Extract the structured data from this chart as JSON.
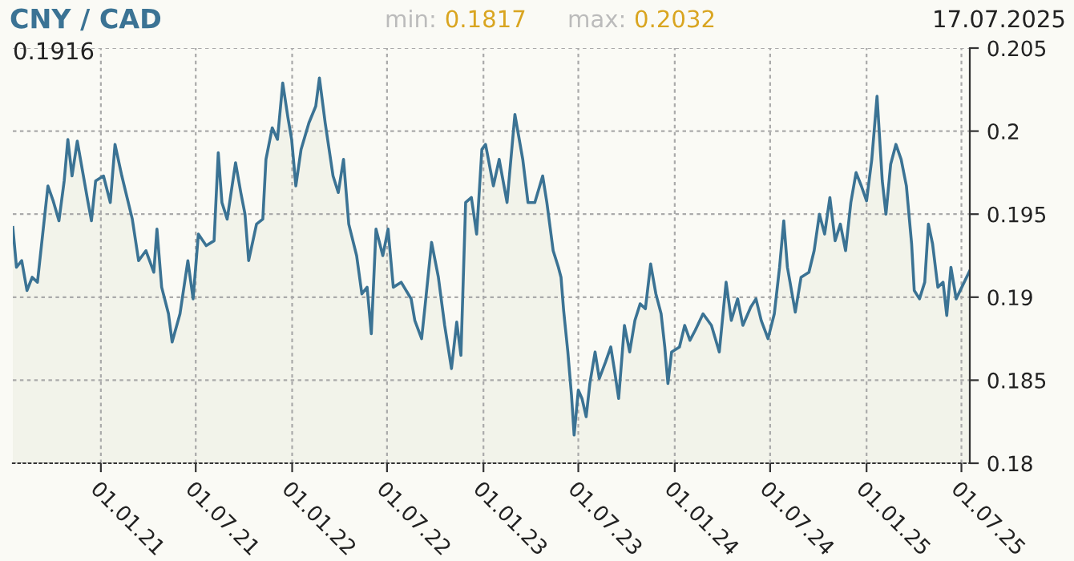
{
  "chart_data": {
    "type": "area",
    "title": "CNY / CAD",
    "annotations": [
      "0.1916",
      "min: 0.1817",
      "max: 0.2032",
      "17.07.2025"
    ],
    "x": [
      "2020-07-17",
      "2020-07-24",
      "2020-08-03",
      "2020-08-13",
      "2020-08-23",
      "2020-09-02",
      "2020-09-12",
      "2020-09-22",
      "2020-10-02",
      "2020-10-13",
      "2020-10-23",
      "2020-10-30",
      "2020-11-07",
      "2020-11-17",
      "2020-11-27",
      "2020-12-07",
      "2020-12-14",
      "2020-12-22",
      "2021-01-06",
      "2021-01-19",
      "2021-01-28",
      "2021-02-10",
      "2021-02-20",
      "2021-03-02",
      "2021-03-14",
      "2021-03-28",
      "2021-04-12",
      "2021-04-18",
      "2021-04-27",
      "2021-05-10",
      "2021-05-17",
      "2021-06-01",
      "2021-06-16",
      "2021-06-26",
      "2021-07-06",
      "2021-07-21",
      "2021-08-05",
      "2021-08-13",
      "2021-08-20",
      "2021-08-30",
      "2021-09-15",
      "2021-09-25",
      "2021-10-03",
      "2021-10-10",
      "2021-10-25",
      "2021-11-06",
      "2021-11-12",
      "2021-11-24",
      "2021-12-04",
      "2021-12-14",
      "2021-12-24",
      "2021-12-31",
      "2022-01-08",
      "2022-01-18",
      "2022-02-02",
      "2022-02-15",
      "2022-02-22",
      "2022-03-05",
      "2022-03-20",
      "2022-03-30",
      "2022-04-09",
      "2022-04-19",
      "2022-05-04",
      "2022-05-14",
      "2022-05-24",
      "2022-06-01",
      "2022-06-10",
      "2022-06-23",
      "2022-07-03",
      "2022-07-13",
      "2022-07-28",
      "2022-08-16",
      "2022-08-23",
      "2022-09-05",
      "2022-09-12",
      "2022-09-24",
      "2022-10-07",
      "2022-10-19",
      "2022-11-01",
      "2022-11-11",
      "2022-11-19",
      "2022-11-28",
      "2022-12-09",
      "2022-12-19",
      "2022-12-29",
      "2023-01-05",
      "2023-01-20",
      "2023-01-31",
      "2023-02-15",
      "2023-03-02",
      "2023-03-17",
      "2023-03-27",
      "2023-04-09",
      "2023-04-24",
      "2023-05-02",
      "2023-05-14",
      "2023-05-24",
      "2023-05-29",
      "2023-06-03",
      "2023-06-11",
      "2023-06-18",
      "2023-06-23",
      "2023-07-01",
      "2023-07-08",
      "2023-07-16",
      "2023-07-23",
      "2023-08-02",
      "2023-08-10",
      "2023-08-22",
      "2023-09-01",
      "2023-09-09",
      "2023-09-16",
      "2023-09-27",
      "2023-10-07",
      "2023-10-17",
      "2023-10-27",
      "2023-11-06",
      "2023-11-16",
      "2023-11-26",
      "2023-12-06",
      "2023-12-13",
      "2023-12-19",
      "2023-12-26",
      "2024-01-10",
      "2024-01-20",
      "2024-01-30",
      "2024-02-09",
      "2024-02-24",
      "2024-03-11",
      "2024-03-26",
      "2024-04-08",
      "2024-04-18",
      "2024-04-30",
      "2024-05-10",
      "2024-05-25",
      "2024-06-04",
      "2024-06-14",
      "2024-06-27",
      "2024-07-09",
      "2024-07-19",
      "2024-07-27",
      "2024-08-03",
      "2024-08-18",
      "2024-08-29",
      "2024-09-13",
      "2024-09-23",
      "2024-10-03",
      "2024-10-13",
      "2024-10-23",
      "2024-11-02",
      "2024-11-12",
      "2024-11-22",
      "2024-12-02",
      "2024-12-12",
      "2024-12-22",
      "2025-01-01",
      "2025-01-11",
      "2025-01-16",
      "2025-01-21",
      "2025-01-31",
      "2025-02-07",
      "2025-02-16",
      "2025-02-26",
      "2025-03-08",
      "2025-03-18",
      "2025-03-28",
      "2025-04-02",
      "2025-04-12",
      "2025-04-22",
      "2025-04-29",
      "2025-05-07",
      "2025-05-17",
      "2025-05-27",
      "2025-06-03",
      "2025-06-11",
      "2025-06-21",
      "2025-07-17"
    ],
    "series": [
      {
        "color": "#3b7394",
        "values": [
          0.1942,
          0.1918,
          0.1922,
          0.1904,
          0.1912,
          0.1909,
          0.1938,
          0.1967,
          0.1958,
          0.1946,
          0.197,
          0.1995,
          0.1973,
          0.1994,
          0.1976,
          0.1958,
          0.1946,
          0.197,
          0.1973,
          0.1957,
          0.1992,
          0.1973,
          0.196,
          0.1947,
          0.1922,
          0.1928,
          0.1915,
          0.1941,
          0.1906,
          0.189,
          0.1873,
          0.189,
          0.1922,
          0.1899,
          0.1938,
          0.1931,
          0.1934,
          0.1987,
          0.1957,
          0.1947,
          0.1981,
          0.1963,
          0.195,
          0.1922,
          0.1944,
          0.1947,
          0.1983,
          0.2002,
          0.1995,
          0.2029,
          0.2008,
          0.1995,
          0.1967,
          0.1989,
          0.2005,
          0.2015,
          0.2032,
          0.2005,
          0.1973,
          0.1963,
          0.1983,
          0.1944,
          0.1925,
          0.1902,
          0.1906,
          0.1878,
          0.1941,
          0.1925,
          0.1941,
          0.1906,
          0.1909,
          0.1899,
          0.1886,
          0.1875,
          0.1896,
          0.1933,
          0.1912,
          0.1883,
          0.1857,
          0.1885,
          0.1865,
          0.1957,
          0.196,
          0.1938,
          0.1989,
          0.1992,
          0.1967,
          0.1983,
          0.1957,
          0.201,
          0.1983,
          0.1957,
          0.1957,
          0.1973,
          0.1957,
          0.1928,
          0.1918,
          0.1912,
          0.1892,
          0.1867,
          0.1841,
          0.1817,
          0.1844,
          0.1839,
          0.1828,
          0.1848,
          0.1867,
          0.1851,
          0.1861,
          0.187,
          0.1854,
          0.1839,
          0.1883,
          0.1867,
          0.1886,
          0.1896,
          0.1893,
          0.192,
          0.1902,
          0.189,
          0.187,
          0.1848,
          0.1867,
          0.187,
          0.1883,
          0.1874,
          0.188,
          0.189,
          0.1883,
          0.1867,
          0.1909,
          0.1886,
          0.1899,
          0.1883,
          0.1894,
          0.1899,
          0.1886,
          0.1875,
          0.189,
          0.1918,
          0.1946,
          0.1918,
          0.1891,
          0.1912,
          0.1915,
          0.1928,
          0.195,
          0.1938,
          0.196,
          0.1934,
          0.1944,
          0.1928,
          0.1957,
          0.1975,
          0.1967,
          0.1958,
          0.1983,
          0.2002,
          0.2021,
          0.197,
          0.195,
          0.198,
          0.1992,
          0.1983,
          0.1967,
          0.1932,
          0.1904,
          0.1899,
          0.1909,
          0.1944,
          0.1932,
          0.1906,
          0.1909,
          0.1889,
          0.1918,
          0.1899,
          0.1916
        ]
      }
    ],
    "xlim": [
      "2020-07-17",
      "2025-07-17"
    ],
    "xticks": [
      {
        "value": "2021-01-01",
        "label": "01.01.21"
      },
      {
        "value": "2021-07-01",
        "label": "01.07.21"
      },
      {
        "value": "2022-01-01",
        "label": "01.01.22"
      },
      {
        "value": "2022-07-01",
        "label": "01.07.22"
      },
      {
        "value": "2023-01-01",
        "label": "01.01.23"
      },
      {
        "value": "2023-07-01",
        "label": "01.07.23"
      },
      {
        "value": "2024-01-01",
        "label": "01.01.24"
      },
      {
        "value": "2024-07-01",
        "label": "01.07.24"
      },
      {
        "value": "2025-01-01",
        "label": "01.01.25"
      },
      {
        "value": "2025-07-01",
        "label": "01.07.25"
      }
    ],
    "ylim": [
      0.18,
      0.205
    ],
    "yticks": [
      {
        "value": 0.18,
        "label": "0.18"
      },
      {
        "value": 0.185,
        "label": "0.185"
      },
      {
        "value": 0.19,
        "label": "0.19"
      },
      {
        "value": 0.195,
        "label": "0.195"
      },
      {
        "value": 0.2,
        "label": "0.2"
      },
      {
        "value": 0.205,
        "label": "0.205"
      }
    ],
    "grid": true,
    "legend": false
  }
}
